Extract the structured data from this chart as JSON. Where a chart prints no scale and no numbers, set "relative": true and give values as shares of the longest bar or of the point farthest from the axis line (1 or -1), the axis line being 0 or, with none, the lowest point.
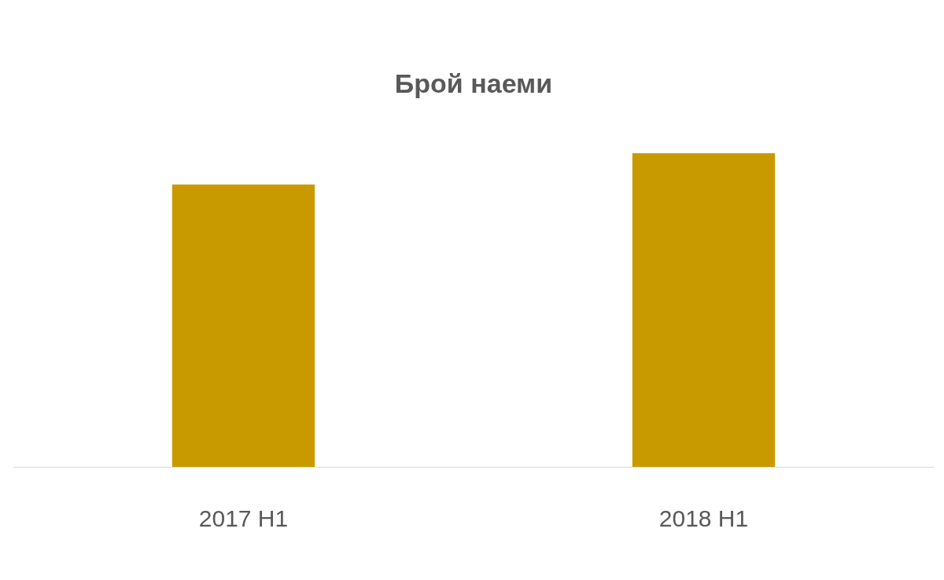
{
  "chart_data": {
    "type": "bar",
    "title": "Брой наеми",
    "categories": [
      "2017 H1",
      "2018 H1"
    ],
    "values": [
      0.9,
      1
    ],
    "color": "#c99a00",
    "relative": true,
    "grid": false,
    "legend": false
  }
}
